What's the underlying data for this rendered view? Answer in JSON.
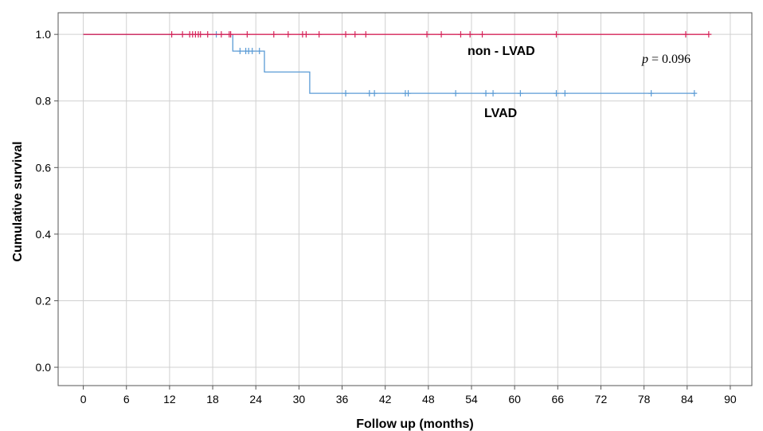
{
  "chart_data": {
    "type": "line",
    "subtype": "kaplan-meier",
    "xlabel": "Follow up (months)",
    "ylabel": "Cumulative survival",
    "xlim": [
      -3.5,
      93
    ],
    "ylim": [
      -0.055,
      1.065
    ],
    "x_ticks": [
      0,
      6,
      12,
      18,
      24,
      30,
      36,
      42,
      48,
      54,
      60,
      66,
      72,
      78,
      84,
      90
    ],
    "y_ticks": [
      0.0,
      0.2,
      0.4,
      0.6,
      0.8,
      1.0
    ],
    "grid": true,
    "annotation": {
      "p_symbol": "p",
      "p_text": " = 0.096"
    },
    "series": [
      {
        "name": "non - LVAD",
        "color": "#d6245a",
        "steps": [
          [
            0,
            1.0
          ],
          [
            87,
            1.0
          ]
        ],
        "censored": [
          [
            12.3,
            1.0
          ],
          [
            13.8,
            1.0
          ],
          [
            14.8,
            1.0
          ],
          [
            15.2,
            1.0
          ],
          [
            15.6,
            1.0
          ],
          [
            16.0,
            1.0
          ],
          [
            16.3,
            1.0
          ],
          [
            17.3,
            1.0
          ],
          [
            19.2,
            1.0
          ],
          [
            20.3,
            1.0
          ],
          [
            20.5,
            1.0
          ],
          [
            22.8,
            1.0
          ],
          [
            26.5,
            1.0
          ],
          [
            28.5,
            1.0
          ],
          [
            30.5,
            1.0
          ],
          [
            31.0,
            1.0
          ],
          [
            32.8,
            1.0
          ],
          [
            36.5,
            1.0
          ],
          [
            37.8,
            1.0
          ],
          [
            39.3,
            1.0
          ],
          [
            47.8,
            1.0
          ],
          [
            49.8,
            1.0
          ],
          [
            52.5,
            1.0
          ],
          [
            53.8,
            1.0
          ],
          [
            55.5,
            1.0
          ],
          [
            65.8,
            1.0
          ],
          [
            83.8,
            1.0
          ],
          [
            87.0,
            1.0
          ]
        ]
      },
      {
        "name": "LVAD",
        "color": "#5b9bd5",
        "steps": [
          [
            0,
            1.0
          ],
          [
            20.8,
            1.0
          ],
          [
            20.8,
            0.95
          ],
          [
            25.2,
            0.95
          ],
          [
            25.2,
            0.887
          ],
          [
            31.5,
            0.887
          ],
          [
            31.5,
            0.823
          ],
          [
            85,
            0.823
          ]
        ],
        "censored": [
          [
            18.5,
            1.0
          ],
          [
            21.8,
            0.95
          ],
          [
            22.6,
            0.95
          ],
          [
            23.0,
            0.95
          ],
          [
            23.5,
            0.95
          ],
          [
            24.5,
            0.95
          ],
          [
            36.5,
            0.823
          ],
          [
            39.8,
            0.823
          ],
          [
            40.5,
            0.823
          ],
          [
            44.8,
            0.823
          ],
          [
            45.2,
            0.823
          ],
          [
            51.8,
            0.823
          ],
          [
            56.0,
            0.823
          ],
          [
            57.0,
            0.823
          ],
          [
            60.8,
            0.823
          ],
          [
            65.8,
            0.823
          ],
          [
            67.0,
            0.823
          ],
          [
            79.0,
            0.823
          ],
          [
            85.0,
            0.823
          ]
        ]
      }
    ]
  }
}
